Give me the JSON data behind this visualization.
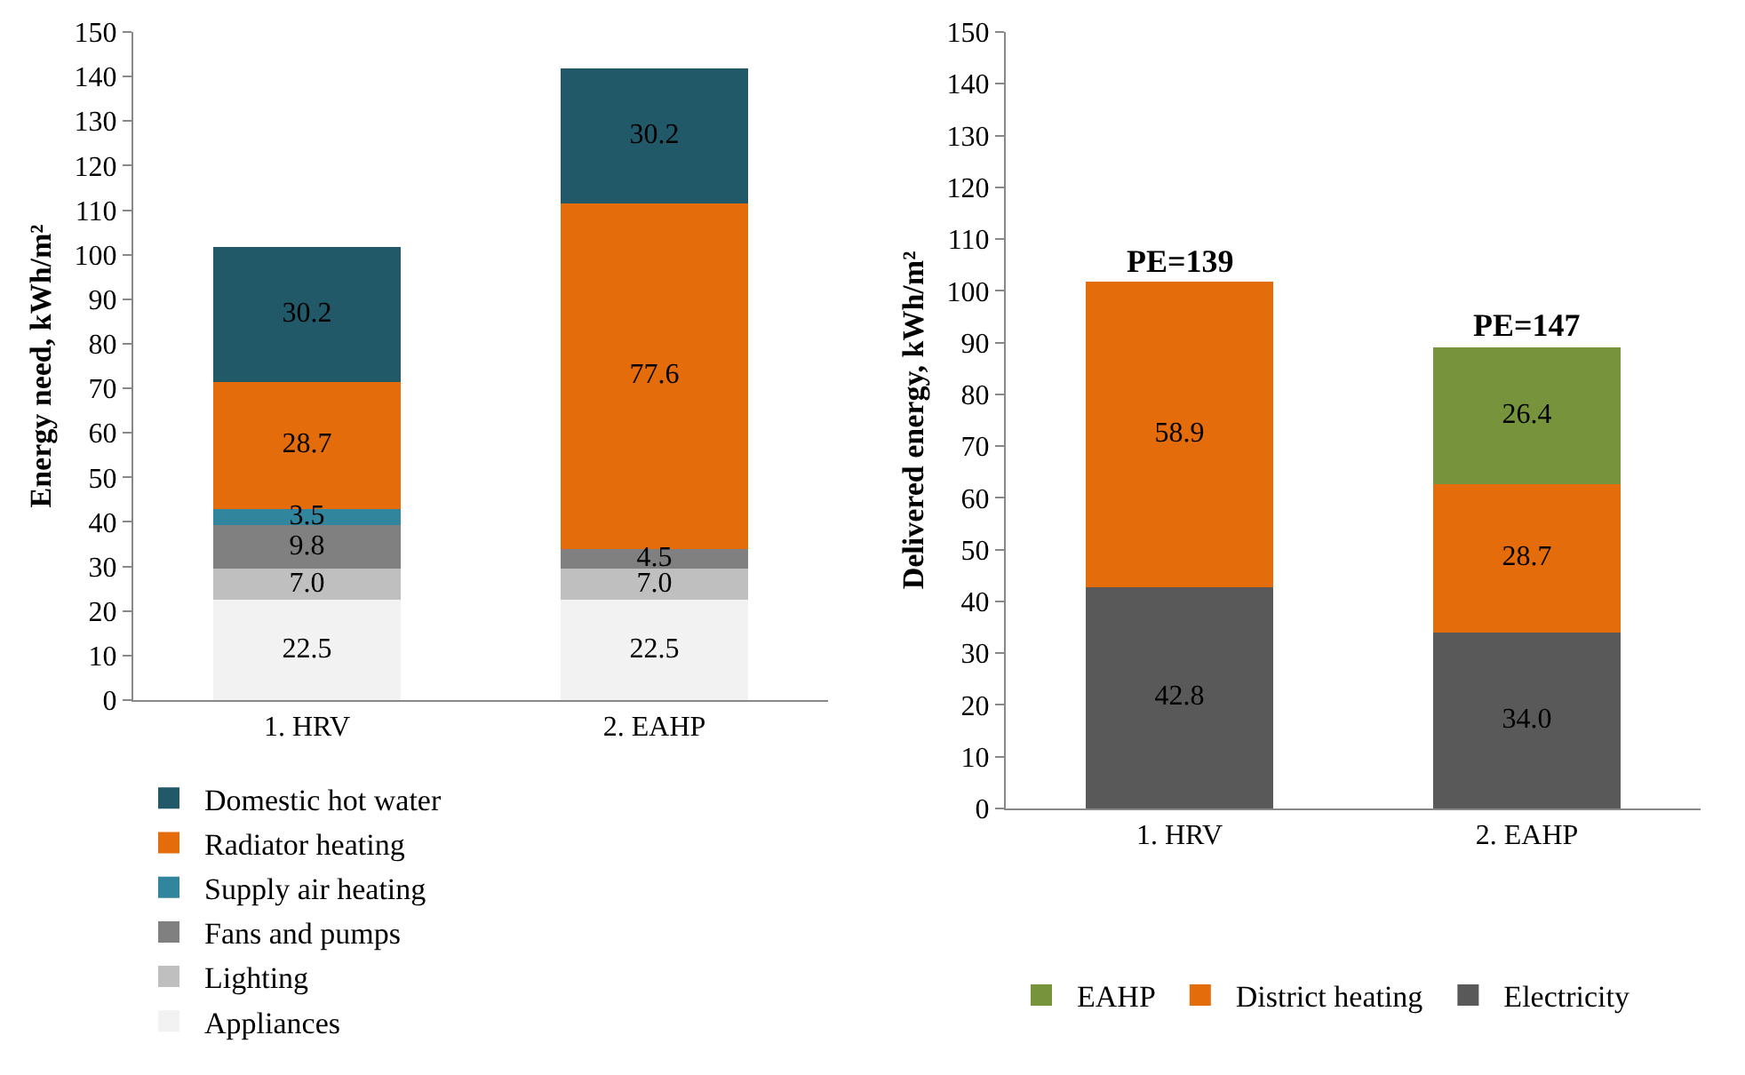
{
  "chart_data": [
    {
      "type": "bar",
      "stacked": true,
      "ylabel": "Energy need, kWh/m²",
      "categories": [
        "1. HRV",
        "2. EAHP"
      ],
      "ylim": [
        0,
        150
      ],
      "yticks": [
        0,
        10,
        20,
        30,
        40,
        50,
        60,
        70,
        80,
        90,
        100,
        110,
        120,
        130,
        140,
        150
      ],
      "grid": false,
      "legend": "bottom",
      "series": [
        {
          "name": "Appliances",
          "color": "#f2f2f2",
          "values": [
            22.5,
            22.5
          ],
          "value_labels": [
            "22.5",
            "22.5"
          ]
        },
        {
          "name": "Lighting",
          "color": "#bfbfbf",
          "values": [
            7.0,
            7.0
          ],
          "value_labels": [
            "7.0",
            "7.0"
          ]
        },
        {
          "name": "Fans and pumps",
          "color": "#808080",
          "values": [
            9.8,
            4.5
          ],
          "value_labels": [
            "9.8",
            "4.5"
          ]
        },
        {
          "name": "Supply air heating",
          "color": "#31859c",
          "values": [
            3.5,
            null
          ],
          "value_labels": [
            "3.5",
            null
          ]
        },
        {
          "name": "Radiator heating",
          "color": "#e46c0a",
          "values": [
            28.7,
            77.6
          ],
          "value_labels": [
            "28.7",
            "77.6"
          ]
        },
        {
          "name": "Domestic hot water",
          "color": "#215968",
          "values": [
            30.2,
            30.2
          ],
          "value_labels": [
            "30.2",
            "30.2"
          ]
        }
      ]
    },
    {
      "type": "bar",
      "stacked": true,
      "ylabel": "Delivered energy, kWh/m²",
      "categories": [
        "1. HRV",
        "2. EAHP"
      ],
      "ylim": [
        0,
        150
      ],
      "yticks": [
        0,
        10,
        20,
        30,
        40,
        50,
        60,
        70,
        80,
        90,
        100,
        110,
        120,
        130,
        140,
        150
      ],
      "grid": false,
      "legend": "bottom",
      "annotations": [
        {
          "text": "PE=139",
          "x": "1. HRV",
          "y": 101.7
        },
        {
          "text": "PE=147",
          "x": "2. EAHP",
          "y": 89.1
        }
      ],
      "series": [
        {
          "name": "Electricity",
          "color": "#595959",
          "values": [
            42.8,
            34.0
          ],
          "value_labels": [
            "42.8",
            "34.0"
          ]
        },
        {
          "name": "District heating",
          "color": "#e46c0a",
          "values": [
            58.9,
            28.7
          ],
          "value_labels": [
            "58.9",
            "28.7"
          ]
        },
        {
          "name": "EAHP",
          "color": "#77933c",
          "values": [
            null,
            26.4
          ],
          "value_labels": [
            null,
            "26.4"
          ]
        }
      ]
    }
  ]
}
